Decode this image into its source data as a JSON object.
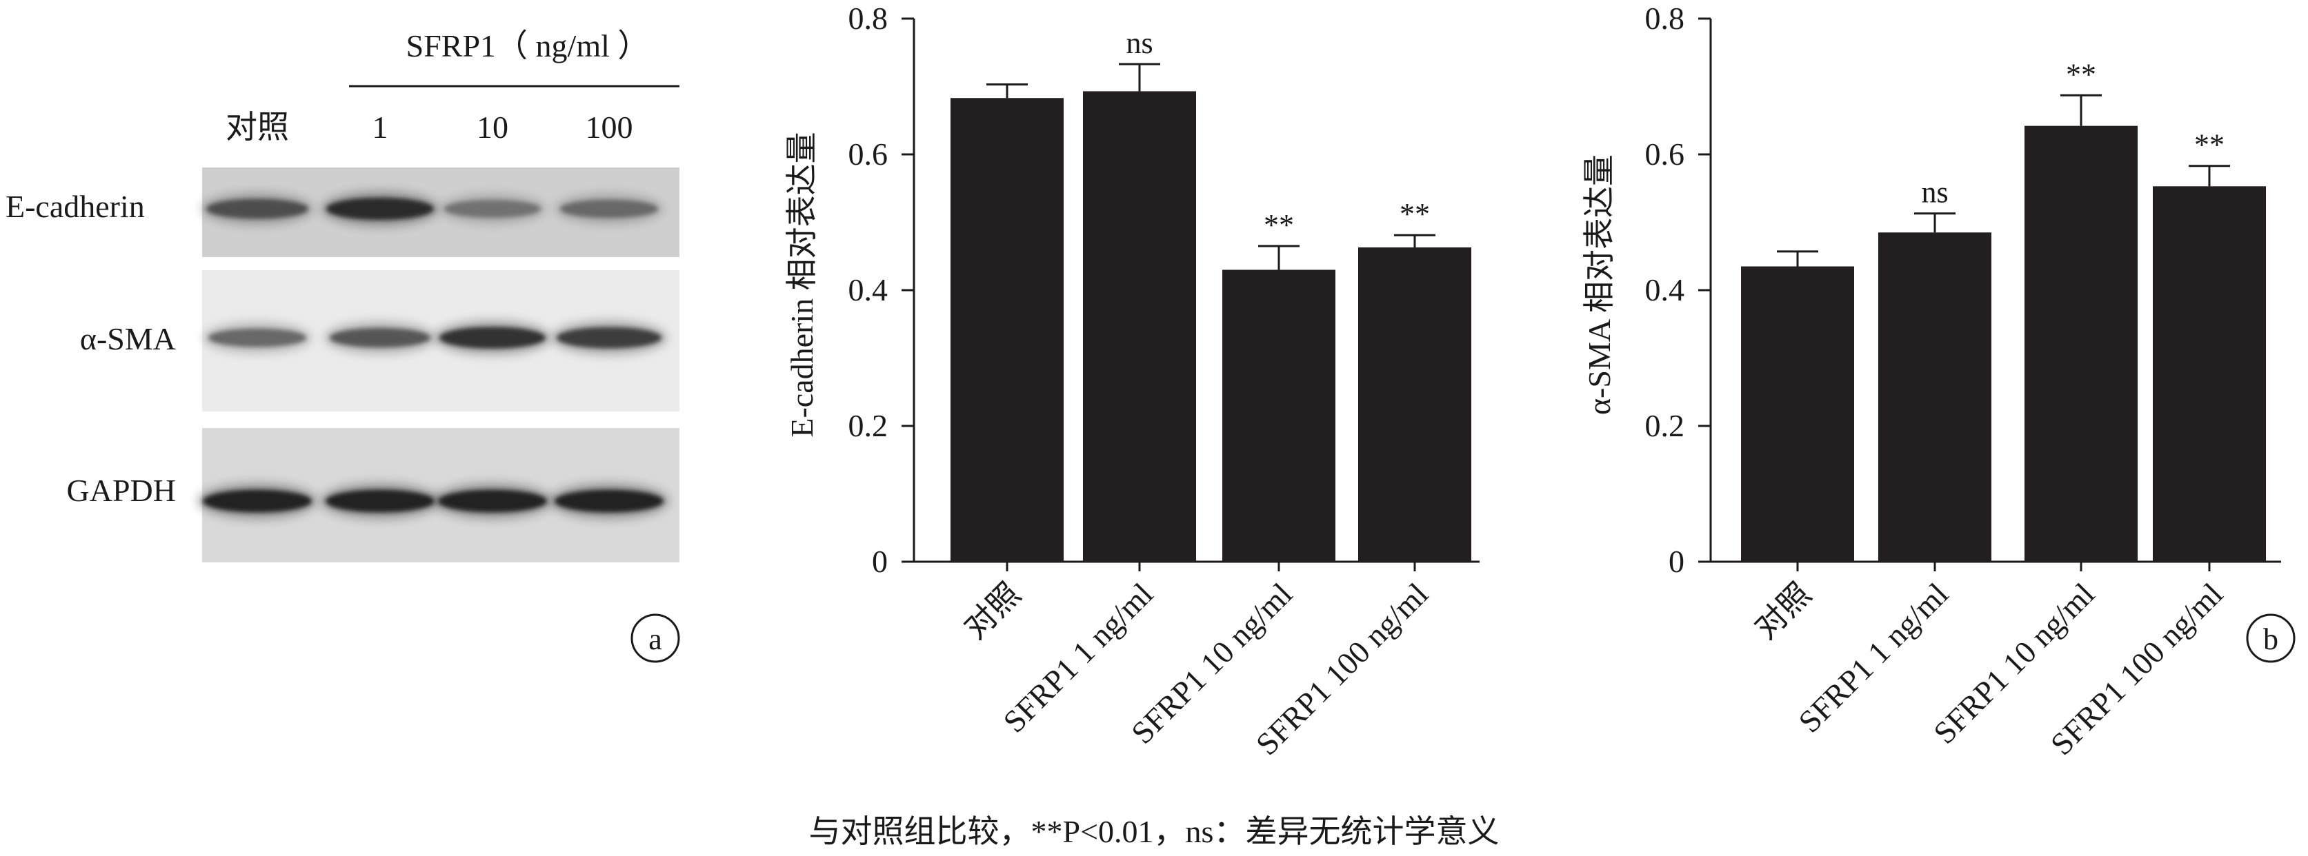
{
  "blot": {
    "header": "SFRP1（ ng/ml ）",
    "lanes": [
      "对照",
      "1",
      "10",
      "100"
    ],
    "rows": [
      {
        "label": "E-cadherin",
        "intensities": [
          0.7,
          0.9,
          0.5,
          0.55
        ]
      },
      {
        "label": "α-SMA",
        "intensities": [
          0.55,
          0.65,
          0.85,
          0.8
        ]
      },
      {
        "label": "GAPDH",
        "intensities": [
          0.95,
          0.95,
          0.95,
          0.95
        ]
      }
    ],
    "panel_label": "a"
  },
  "chart_data": [
    {
      "type": "bar",
      "categories": [
        "对照",
        "SFRP1 1 ng/ml",
        "SFRP1 10 ng/ml",
        "SFRP1 100 ng/ml"
      ],
      "values": [
        0.683,
        0.693,
        0.43,
        0.463
      ],
      "errors": [
        0.02,
        0.04,
        0.035,
        0.018
      ],
      "annotations": [
        "",
        "ns",
        "**",
        "**"
      ],
      "title": "",
      "xlabel": "",
      "ylabel": "E-cadherin 相对表达量",
      "ylim": [
        0,
        0.8
      ],
      "yticks": [
        "0",
        "0.2",
        "0.4",
        "0.6",
        "0.8"
      ],
      "color": "#231f20"
    },
    {
      "type": "bar",
      "categories": [
        "对照",
        "SFRP1 1 ng/ml",
        "SFRP1 10 ng/ml",
        "SFRP1 100 ng/ml"
      ],
      "values": [
        0.435,
        0.485,
        0.642,
        0.553
      ],
      "errors": [
        0.022,
        0.028,
        0.045,
        0.03
      ],
      "annotations": [
        "",
        "ns",
        "**",
        "**"
      ],
      "title": "",
      "xlabel": "",
      "ylabel": "α-SMA 相对表达量",
      "ylim": [
        0,
        0.8
      ],
      "yticks": [
        "0",
        "0.2",
        "0.4",
        "0.6",
        "0.8"
      ],
      "color": "#231f20",
      "panel_label": "b"
    }
  ],
  "caption": "与对照组比较，**P<0.01，ns：差异无统计学意义"
}
